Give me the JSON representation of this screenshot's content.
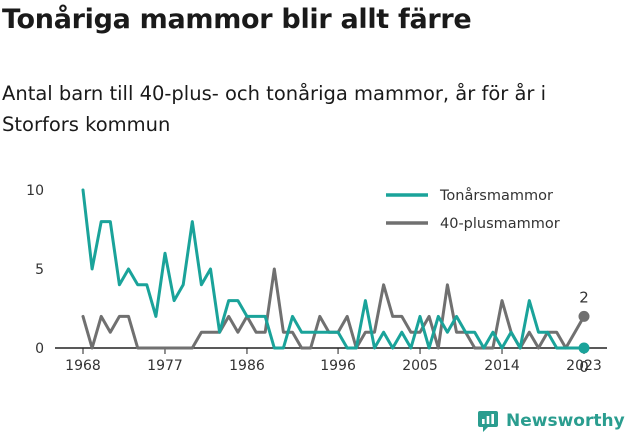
{
  "title": "Tonåriga mammor blir allt färre",
  "subtitle": "Antal barn till 40-plus- och tonåriga mammor, år för år i Storfors kommun",
  "brand": "Newsworthy",
  "colors": {
    "teen": "#1aa39a",
    "forty": "#707070",
    "axis": "#222222"
  },
  "chart_data": {
    "type": "line",
    "x": [
      1968,
      1969,
      1970,
      1971,
      1972,
      1973,
      1974,
      1975,
      1976,
      1977,
      1978,
      1979,
      1980,
      1981,
      1982,
      1983,
      1984,
      1985,
      1986,
      1987,
      1988,
      1989,
      1990,
      1991,
      1992,
      1993,
      1994,
      1995,
      1996,
      1997,
      1998,
      1999,
      2000,
      2001,
      2002,
      2003,
      2004,
      2005,
      2006,
      2007,
      2008,
      2009,
      2010,
      2011,
      2012,
      2013,
      2014,
      2015,
      2016,
      2017,
      2018,
      2019,
      2020,
      2021,
      2022,
      2023
    ],
    "series": [
      {
        "name": "Tonårsmammor",
        "color": "#1aa39a",
        "values": [
          10,
          5,
          8,
          8,
          4,
          5,
          4,
          4,
          2,
          6,
          3,
          4,
          8,
          4,
          5,
          1,
          3,
          3,
          2,
          2,
          2,
          0,
          0,
          2,
          1,
          1,
          1,
          1,
          1,
          0,
          0,
          3,
          0,
          1,
          0,
          1,
          0,
          2,
          0,
          2,
          1,
          2,
          1,
          1,
          0,
          1,
          0,
          1,
          0,
          3,
          1,
          1,
          0,
          0,
          0,
          0
        ]
      },
      {
        "name": "40-plusmammor",
        "color": "#707070",
        "values": [
          2,
          0,
          2,
          1,
          2,
          2,
          0,
          0,
          0,
          0,
          0,
          0,
          0,
          1,
          1,
          1,
          2,
          1,
          2,
          1,
          1,
          5,
          1,
          1,
          0,
          0,
          2,
          1,
          1,
          2,
          0,
          1,
          1,
          4,
          2,
          2,
          1,
          1,
          2,
          0,
          4,
          1,
          1,
          0,
          0,
          0,
          3,
          1,
          0,
          1,
          0,
          1,
          1,
          0,
          1,
          2
        ]
      }
    ],
    "xticks": [
      1968,
      1977,
      1986,
      1996,
      2005,
      2014,
      2023
    ],
    "yticks": [
      0,
      5,
      10
    ],
    "ylim": [
      0,
      10
    ],
    "end_labels": [
      {
        "series": "40-plusmammor",
        "label": "2"
      },
      {
        "series": "Tonårsmammor",
        "label": "0"
      }
    ],
    "legend_position": "top-right",
    "grid": false
  }
}
